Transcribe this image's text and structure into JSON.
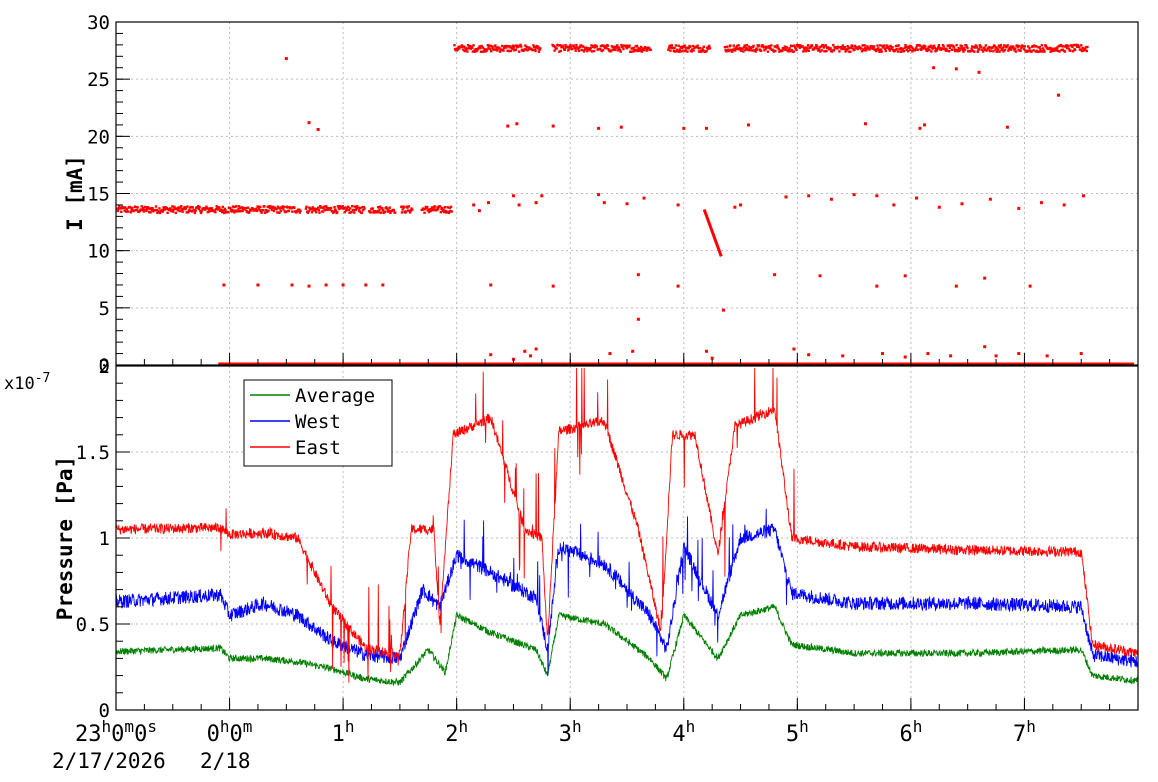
{
  "chart_data": [
    {
      "type": "scatter",
      "ylabel": "I [mA]",
      "ylim": [
        0,
        30
      ],
      "yticks": [
        0,
        5,
        10,
        15,
        20,
        25,
        30
      ],
      "grid": true,
      "series": [
        {
          "color": "#ff0000",
          "levels": [
            {
              "from": -1.0,
              "to": 1.95,
              "y": 13.7
            },
            {
              "from": 1.97,
              "to": 7.55,
              "y": 27.8
            }
          ],
          "points": [
            [
              -0.05,
              7.0
            ],
            [
              0.25,
              7.0
            ],
            [
              0.55,
              7.0
            ],
            [
              0.7,
              6.9
            ],
            [
              0.85,
              7.0
            ],
            [
              1.0,
              7.0
            ],
            [
              1.2,
              7.0
            ],
            [
              1.35,
              7.0
            ],
            [
              2.3,
              7.0
            ],
            [
              2.85,
              6.9
            ],
            [
              3.6,
              7.9
            ],
            [
              3.95,
              6.9
            ],
            [
              4.8,
              7.9
            ],
            [
              5.2,
              7.8
            ],
            [
              5.7,
              6.9
            ],
            [
              5.95,
              7.8
            ],
            [
              6.4,
              6.9
            ],
            [
              6.65,
              7.6
            ],
            [
              7.05,
              6.9
            ],
            [
              3.6,
              4.0
            ],
            [
              4.35,
              4.8
            ],
            [
              0.5,
              26.8
            ],
            [
              0.7,
              21.2
            ],
            [
              0.78,
              20.6
            ],
            [
              2.45,
              20.9
            ],
            [
              2.53,
              21.1
            ],
            [
              2.85,
              20.9
            ],
            [
              3.25,
              20.7
            ],
            [
              3.45,
              20.8
            ],
            [
              4.0,
              20.7
            ],
            [
              4.2,
              20.7
            ],
            [
              4.57,
              21.0
            ],
            [
              5.6,
              21.1
            ],
            [
              6.08,
              20.7
            ],
            [
              6.12,
              21.0
            ],
            [
              6.85,
              20.8
            ],
            [
              7.3,
              23.6
            ],
            [
              6.4,
              25.9
            ],
            [
              6.2,
              26.0
            ],
            [
              6.6,
              25.6
            ],
            [
              2.15,
              14.0
            ],
            [
              2.2,
              13.5
            ],
            [
              2.28,
              14.2
            ],
            [
              2.5,
              14.8
            ],
            [
              2.55,
              14.0
            ],
            [
              2.7,
              14.2
            ],
            [
              2.75,
              14.8
            ],
            [
              3.25,
              14.9
            ],
            [
              3.3,
              14.2
            ],
            [
              3.5,
              14.1
            ],
            [
              3.65,
              14.6
            ],
            [
              3.95,
              14.0
            ],
            [
              4.45,
              13.8
            ],
            [
              4.5,
              14.0
            ],
            [
              4.9,
              14.7
            ],
            [
              5.1,
              14.8
            ],
            [
              5.3,
              14.5
            ],
            [
              5.5,
              14.9
            ],
            [
              5.7,
              14.8
            ],
            [
              5.85,
              14.0
            ],
            [
              6.05,
              14.6
            ],
            [
              6.25,
              13.8
            ],
            [
              6.45,
              14.1
            ],
            [
              6.7,
              14.5
            ],
            [
              6.95,
              13.7
            ],
            [
              7.15,
              14.2
            ],
            [
              7.35,
              14.0
            ],
            [
              7.52,
              14.8
            ],
            [
              2.3,
              0.9
            ],
            [
              2.5,
              0.5
            ],
            [
              2.6,
              1.2
            ],
            [
              2.65,
              0.8
            ],
            [
              2.7,
              1.4
            ],
            [
              3.35,
              1.0
            ],
            [
              3.55,
              1.2
            ],
            [
              4.2,
              1.2
            ],
            [
              4.25,
              0.6
            ],
            [
              4.97,
              1.4
            ],
            [
              5.1,
              0.9
            ],
            [
              5.4,
              0.8
            ],
            [
              5.75,
              1.0
            ],
            [
              5.95,
              0.7
            ],
            [
              6.15,
              1.0
            ],
            [
              6.35,
              0.8
            ],
            [
              6.65,
              1.6
            ],
            [
              6.75,
              0.8
            ],
            [
              6.95,
              1.0
            ],
            [
              7.2,
              0.8
            ],
            [
              7.5,
              1.0
            ]
          ],
          "decay_segment": [
            [
              4.18,
              13.6
            ],
            [
              4.33,
              9.5
            ]
          ]
        }
      ]
    },
    {
      "type": "line",
      "ylabel": "Pressure [Pa]",
      "exponent_label": "x10",
      "exponent_sup": "-7",
      "ylim": [
        0,
        2
      ],
      "yticks": [
        0,
        0.5,
        1,
        1.5,
        2
      ],
      "ytick_labels": [
        "0",
        "0.5",
        "1",
        "1.5",
        "2"
      ],
      "grid": true,
      "legend": "top-left",
      "series": [
        {
          "name": "Average",
          "color": "#008000",
          "points": [
            [
              -1.0,
              0.34
            ],
            [
              -0.08,
              0.36
            ],
            [
              0.0,
              0.3
            ],
            [
              0.3,
              0.3
            ],
            [
              0.6,
              0.28
            ],
            [
              0.9,
              0.24
            ],
            [
              1.2,
              0.18
            ],
            [
              1.5,
              0.16
            ],
            [
              1.75,
              0.35
            ],
            [
              1.9,
              0.22
            ],
            [
              2.0,
              0.55
            ],
            [
              2.3,
              0.45
            ],
            [
              2.7,
              0.35
            ],
            [
              2.8,
              0.2
            ],
            [
              2.9,
              0.55
            ],
            [
              3.3,
              0.5
            ],
            [
              3.7,
              0.3
            ],
            [
              3.85,
              0.18
            ],
            [
              4.0,
              0.55
            ],
            [
              4.3,
              0.3
            ],
            [
              4.5,
              0.55
            ],
            [
              4.8,
              0.6
            ],
            [
              4.95,
              0.38
            ],
            [
              5.5,
              0.33
            ],
            [
              6.5,
              0.33
            ],
            [
              7.5,
              0.35
            ],
            [
              7.6,
              0.2
            ],
            [
              8.0,
              0.17
            ]
          ]
        },
        {
          "name": "West",
          "color": "#0000ff",
          "points": [
            [
              -1.0,
              0.63
            ],
            [
              -0.08,
              0.67
            ],
            [
              0.0,
              0.55
            ],
            [
              0.3,
              0.62
            ],
            [
              0.6,
              0.55
            ],
            [
              0.9,
              0.4
            ],
            [
              1.2,
              0.32
            ],
            [
              1.5,
              0.3
            ],
            [
              1.7,
              0.7
            ],
            [
              1.85,
              0.6
            ],
            [
              2.0,
              0.9
            ],
            [
              2.3,
              0.8
            ],
            [
              2.7,
              0.65
            ],
            [
              2.8,
              0.35
            ],
            [
              2.9,
              0.95
            ],
            [
              3.3,
              0.85
            ],
            [
              3.7,
              0.55
            ],
            [
              3.85,
              0.35
            ],
            [
              4.0,
              0.95
            ],
            [
              4.3,
              0.55
            ],
            [
              4.5,
              1.0
            ],
            [
              4.8,
              1.05
            ],
            [
              4.95,
              0.68
            ],
            [
              5.5,
              0.62
            ],
            [
              6.5,
              0.62
            ],
            [
              7.5,
              0.6
            ],
            [
              7.6,
              0.32
            ],
            [
              8.0,
              0.28
            ]
          ]
        },
        {
          "name": "East",
          "color": "#ff0000",
          "points": [
            [
              -1.0,
              1.05
            ],
            [
              -0.08,
              1.06
            ],
            [
              0.0,
              1.02
            ],
            [
              0.3,
              1.03
            ],
            [
              0.6,
              1.0
            ],
            [
              0.9,
              0.6
            ],
            [
              1.2,
              0.36
            ],
            [
              1.5,
              0.32
            ],
            [
              1.6,
              1.05
            ],
            [
              1.8,
              1.05
            ],
            [
              1.85,
              0.5
            ],
            [
              1.97,
              1.6
            ],
            [
              2.3,
              1.7
            ],
            [
              2.6,
              1.05
            ],
            [
              2.75,
              1.0
            ],
            [
              2.8,
              0.4
            ],
            [
              2.9,
              1.62
            ],
            [
              3.3,
              1.68
            ],
            [
              3.6,
              1.05
            ],
            [
              3.8,
              0.45
            ],
            [
              3.9,
              1.6
            ],
            [
              4.1,
              1.6
            ],
            [
              4.3,
              0.9
            ],
            [
              4.45,
              1.65
            ],
            [
              4.8,
              1.75
            ],
            [
              4.95,
              1.0
            ],
            [
              5.5,
              0.95
            ],
            [
              6.5,
              0.93
            ],
            [
              7.5,
              0.92
            ],
            [
              7.6,
              0.38
            ],
            [
              8.0,
              0.33
            ]
          ]
        }
      ]
    }
  ],
  "xaxis": {
    "range": [
      -1.0,
      8.0
    ],
    "ticks": [
      {
        "value": -1,
        "main": "23",
        "parts": [
          [
            "h",
            "0"
          ],
          [
            "m",
            "0"
          ],
          [
            "s",
            ""
          ]
        ]
      },
      {
        "value": 0,
        "main": "0",
        "parts": [
          [
            "h",
            "0"
          ],
          [
            "m",
            ""
          ]
        ]
      },
      {
        "value": 1,
        "main": "1",
        "parts": [
          [
            "h",
            ""
          ]
        ]
      },
      {
        "value": 2,
        "main": "2",
        "parts": [
          [
            "h",
            ""
          ]
        ]
      },
      {
        "value": 3,
        "main": "3",
        "parts": [
          [
            "h",
            ""
          ]
        ]
      },
      {
        "value": 4,
        "main": "4",
        "parts": [
          [
            "h",
            ""
          ]
        ]
      },
      {
        "value": 5,
        "main": "5",
        "parts": [
          [
            "h",
            ""
          ]
        ]
      },
      {
        "value": 6,
        "main": "6",
        "parts": [
          [
            "h",
            ""
          ]
        ]
      },
      {
        "value": 7,
        "main": "7",
        "parts": [
          [
            "h",
            ""
          ]
        ]
      }
    ],
    "date_labels": [
      "2/17/2026",
      "2/18"
    ]
  }
}
